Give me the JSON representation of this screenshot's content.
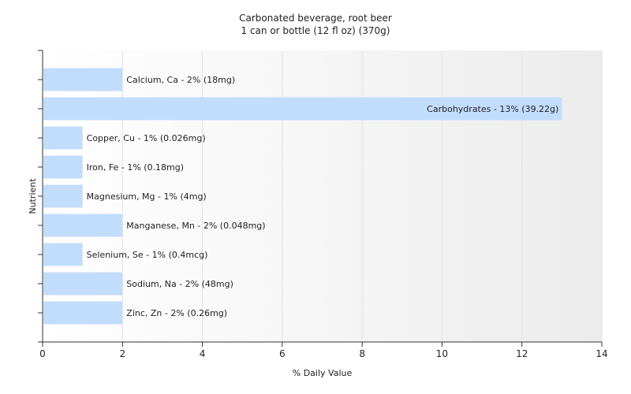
{
  "chart_data": {
    "type": "bar",
    "orientation": "horizontal",
    "title": "Carbonated beverage, root beer",
    "subtitle": "1 can or bottle (12 fl oz) (370g)",
    "xlabel": "% Daily Value",
    "ylabel": "Nutrient",
    "xlim": [
      0,
      14
    ],
    "xticks": [
      0,
      2,
      4,
      6,
      8,
      10,
      12,
      14
    ],
    "grid": true,
    "bar_color": "#c2dcfc",
    "categories": [
      "Calcium, Ca",
      "Carbohydrates",
      "Copper, Cu",
      "Iron, Fe",
      "Magnesium, Mg",
      "Manganese, Mn",
      "Selenium, Se",
      "Sodium, Na",
      "Zinc, Zn"
    ],
    "values": [
      2,
      13,
      1,
      1,
      1,
      2,
      1,
      2,
      2
    ],
    "labels": [
      "Calcium, Ca - 2% (18mg)",
      "Carbohydrates - 13% (39.22g)",
      "Copper, Cu - 1% (0.026mg)",
      "Iron, Fe - 1% (0.18mg)",
      "Magnesium, Mg - 1% (4mg)",
      "Manganese, Mn - 2% (0.048mg)",
      "Selenium, Se - 1% (0.4mcg)",
      "Sodium, Na - 2% (48mg)",
      "Zinc, Zn - 2% (0.26mg)"
    ]
  }
}
